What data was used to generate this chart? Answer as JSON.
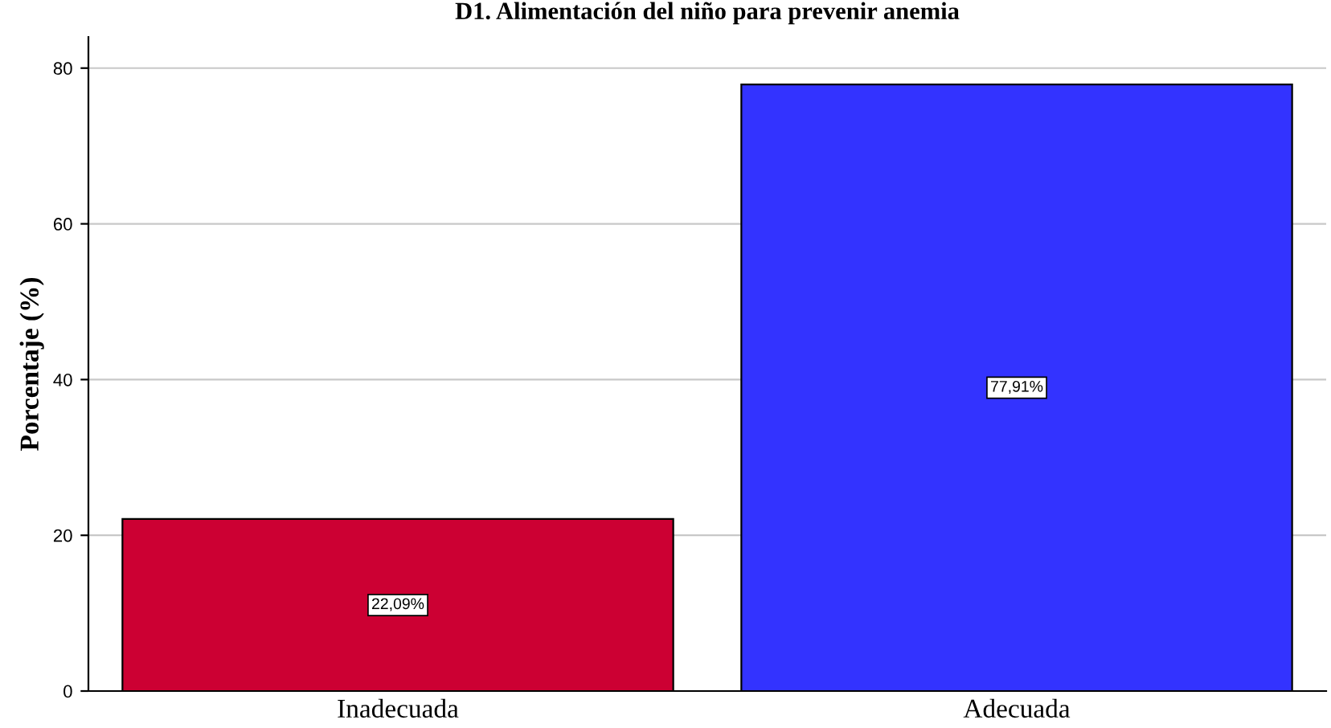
{
  "chart_data": {
    "type": "bar",
    "title": "D1. Alimentación del niño para prevenir anemia",
    "ylabel": "Porcentaje (%)",
    "categories": [
      "Inadecuada",
      "Adecuada"
    ],
    "values": [
      22.09,
      77.91
    ],
    "colors": [
      "#cc0033",
      "#3333ff"
    ],
    "value_labels": [
      "22,09%",
      "77,91%"
    ],
    "ylim": [
      0,
      84
    ],
    "yticks": [
      0,
      20,
      40,
      60,
      80
    ],
    "grid": "y",
    "legend": false
  }
}
